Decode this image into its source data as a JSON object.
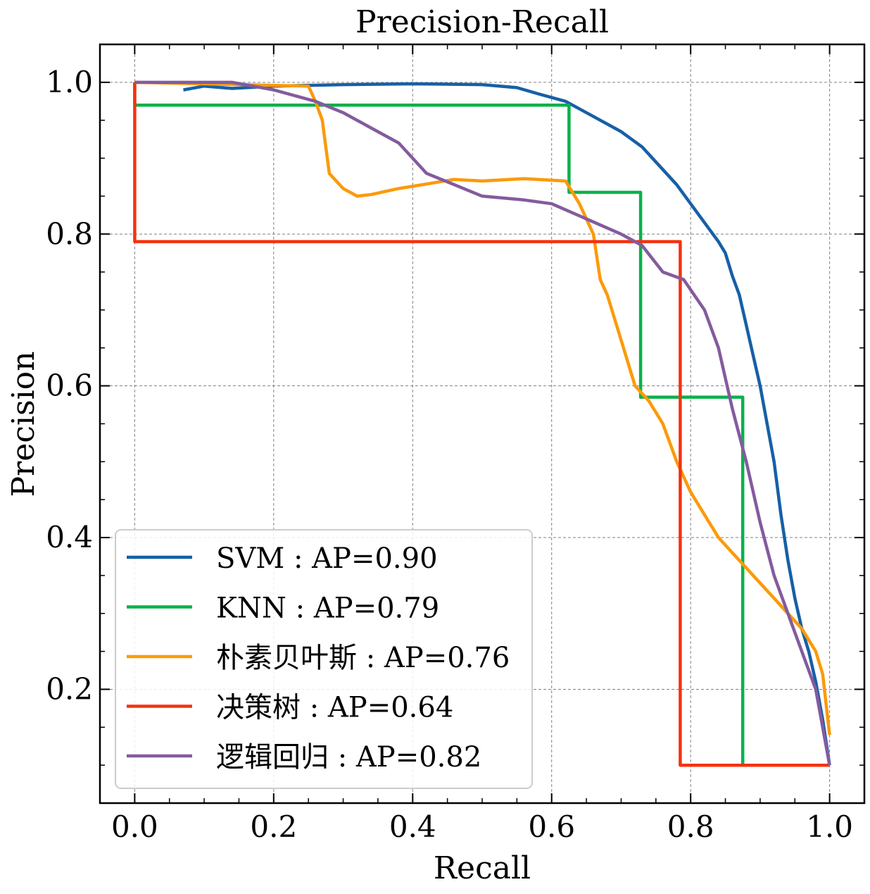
{
  "chart_data": {
    "type": "line",
    "title": "Precision-Recall",
    "xlabel": "Recall",
    "ylabel": "Precision",
    "xlim": [
      -0.05,
      1.05
    ],
    "ylim": [
      0.05,
      1.05
    ],
    "xticks": [
      0.0,
      0.2,
      0.4,
      0.6,
      0.8,
      1.0
    ],
    "xtick_labels": [
      "0.0",
      "0.2",
      "0.4",
      "0.6",
      "0.8",
      "1.0"
    ],
    "yticks": [
      0.2,
      0.4,
      0.6,
      0.8,
      1.0
    ],
    "ytick_labels": [
      "0.2",
      "0.4",
      "0.6",
      "0.8",
      "1.0"
    ],
    "grid": true,
    "legend_position": "lower-left",
    "series": [
      {
        "name": "SVM : AP=0.90",
        "color": "#1660a6",
        "x": [
          0.07,
          0.1,
          0.14,
          0.2,
          0.3,
          0.4,
          0.5,
          0.55,
          0.58,
          0.62,
          0.66,
          0.7,
          0.73,
          0.76,
          0.78,
          0.8,
          0.82,
          0.84,
          0.85,
          0.86,
          0.87,
          0.88,
          0.89,
          0.9,
          0.91,
          0.92,
          0.93,
          0.94,
          0.95,
          0.96,
          0.97,
          0.98,
          0.99,
          1.0
        ],
        "y": [
          0.99,
          0.995,
          0.992,
          0.995,
          0.997,
          0.998,
          0.997,
          0.993,
          0.985,
          0.975,
          0.955,
          0.935,
          0.915,
          0.885,
          0.865,
          0.84,
          0.815,
          0.79,
          0.775,
          0.745,
          0.72,
          0.68,
          0.64,
          0.6,
          0.55,
          0.5,
          0.43,
          0.37,
          0.32,
          0.28,
          0.25,
          0.21,
          0.16,
          0.1
        ]
      },
      {
        "name": "KNN : AP=0.79",
        "color": "#0ab14b",
        "x": [
          0.0,
          0.0,
          0.625,
          0.625,
          0.728,
          0.728,
          0.875,
          0.875
        ],
        "y": [
          1.0,
          0.97,
          0.97,
          0.855,
          0.855,
          0.585,
          0.585,
          0.1
        ]
      },
      {
        "name": "朴素贝叶斯 : AP=0.76",
        "color": "#fb9a09",
        "x": [
          0.0,
          0.25,
          0.26,
          0.27,
          0.28,
          0.3,
          0.32,
          0.34,
          0.38,
          0.42,
          0.46,
          0.5,
          0.56,
          0.62,
          0.64,
          0.66,
          0.67,
          0.68,
          0.7,
          0.72,
          0.74,
          0.76,
          0.78,
          0.8,
          0.82,
          0.84,
          0.86,
          0.88,
          0.9,
          0.92,
          0.94,
          0.96,
          0.98,
          0.99,
          1.0
        ],
        "y": [
          1.0,
          0.995,
          0.975,
          0.95,
          0.88,
          0.86,
          0.85,
          0.852,
          0.86,
          0.866,
          0.872,
          0.87,
          0.873,
          0.87,
          0.84,
          0.8,
          0.74,
          0.72,
          0.66,
          0.6,
          0.58,
          0.55,
          0.5,
          0.46,
          0.43,
          0.4,
          0.38,
          0.36,
          0.34,
          0.32,
          0.3,
          0.28,
          0.25,
          0.22,
          0.14
        ]
      },
      {
        "name": "决策树 : AP=0.64",
        "color": "#f5320f",
        "x": [
          0.0,
          0.0,
          0.785,
          0.785,
          1.0
        ],
        "y": [
          1.0,
          0.79,
          0.79,
          0.1,
          0.1
        ]
      },
      {
        "name": "逻辑回归 : AP=0.82",
        "color": "#845b9e",
        "x": [
          0.0,
          0.14,
          0.2,
          0.26,
          0.3,
          0.34,
          0.38,
          0.42,
          0.46,
          0.5,
          0.56,
          0.6,
          0.65,
          0.7,
          0.73,
          0.76,
          0.79,
          0.82,
          0.84,
          0.86,
          0.88,
          0.9,
          0.92,
          0.94,
          0.96,
          0.98,
          1.0
        ],
        "y": [
          1.0,
          1.0,
          0.99,
          0.975,
          0.96,
          0.94,
          0.92,
          0.88,
          0.865,
          0.85,
          0.845,
          0.84,
          0.82,
          0.8,
          0.785,
          0.75,
          0.74,
          0.7,
          0.65,
          0.57,
          0.5,
          0.42,
          0.35,
          0.3,
          0.25,
          0.2,
          0.1
        ]
      }
    ]
  }
}
